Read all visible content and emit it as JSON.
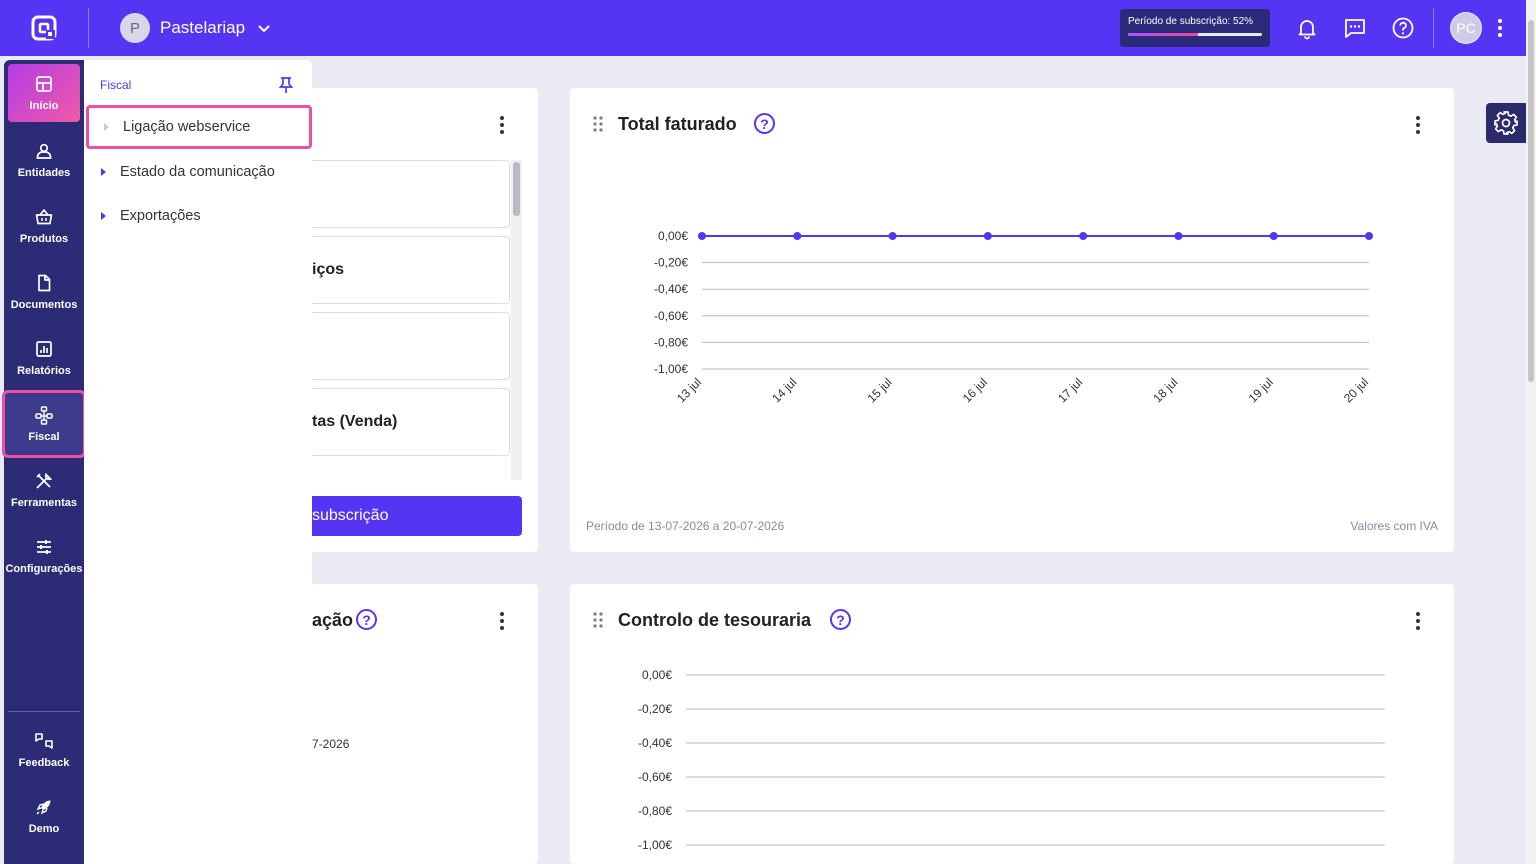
{
  "topbar": {
    "company_initial": "P",
    "company_name": "Pastelariap",
    "subscription_label": "Período de subscrição: 52%",
    "subscription_progress": 0.52,
    "user_initials": "PC",
    "accent_color": "#5535f3"
  },
  "sidebar": {
    "items": [
      {
        "label": "Início",
        "icon": "dashboard-icon"
      },
      {
        "label": "Entidades",
        "icon": "user-icon"
      },
      {
        "label": "Produtos",
        "icon": "basket-icon"
      },
      {
        "label": "Documentos",
        "icon": "document-icon"
      },
      {
        "label": "Relatórios",
        "icon": "chart-icon"
      },
      {
        "label": "Fiscal",
        "icon": "network-icon"
      },
      {
        "label": "Ferramentas",
        "icon": "tools-icon"
      },
      {
        "label": "Configurações",
        "icon": "sliders-icon"
      }
    ],
    "bottom": [
      {
        "label": "Feedback",
        "icon": "feedback-icon"
      },
      {
        "label": "Demo",
        "icon": "rocket-icon"
      }
    ]
  },
  "flyout": {
    "title": "Fiscal",
    "items": [
      "Ligação webservice",
      "Estado da comunicação",
      "Exportações"
    ]
  },
  "left_card": {
    "rows": [
      "",
      "iços",
      "",
      "tas (Venda)"
    ],
    "button_label": "subscrição"
  },
  "left_card2": {
    "title_partial": "ação",
    "date_partial": "7-2026"
  },
  "total_card": {
    "title": "Total faturado",
    "period": "Período de 13-07-2026 a 20-07-2026",
    "note": "Valores com IVA"
  },
  "treasury_card": {
    "title": "Controlo de tesouraria"
  },
  "chart_data": [
    {
      "type": "line",
      "title": "Total faturado",
      "x": [
        "13 jul",
        "14 jul",
        "15 jul",
        "16 jul",
        "17 jul",
        "18 jul",
        "19 jul",
        "20 jul"
      ],
      "series": [
        {
          "values": [
            0,
            0,
            0,
            0,
            0,
            0,
            0,
            0
          ]
        }
      ],
      "yticks": [
        "0,00€",
        "-0,20€",
        "-0,40€",
        "-0,60€",
        "-0,80€",
        "-1,00€"
      ],
      "ylim": [
        -1,
        0
      ],
      "grid": true,
      "color": "#5535f3"
    },
    {
      "type": "line",
      "title": "Controlo de tesouraria",
      "yticks": [
        "0,00€",
        "-0,20€",
        "-0,40€",
        "-0,60€",
        "-0,80€",
        "-1,00€"
      ],
      "ylim": [
        -1,
        0
      ],
      "grid": true
    }
  ]
}
